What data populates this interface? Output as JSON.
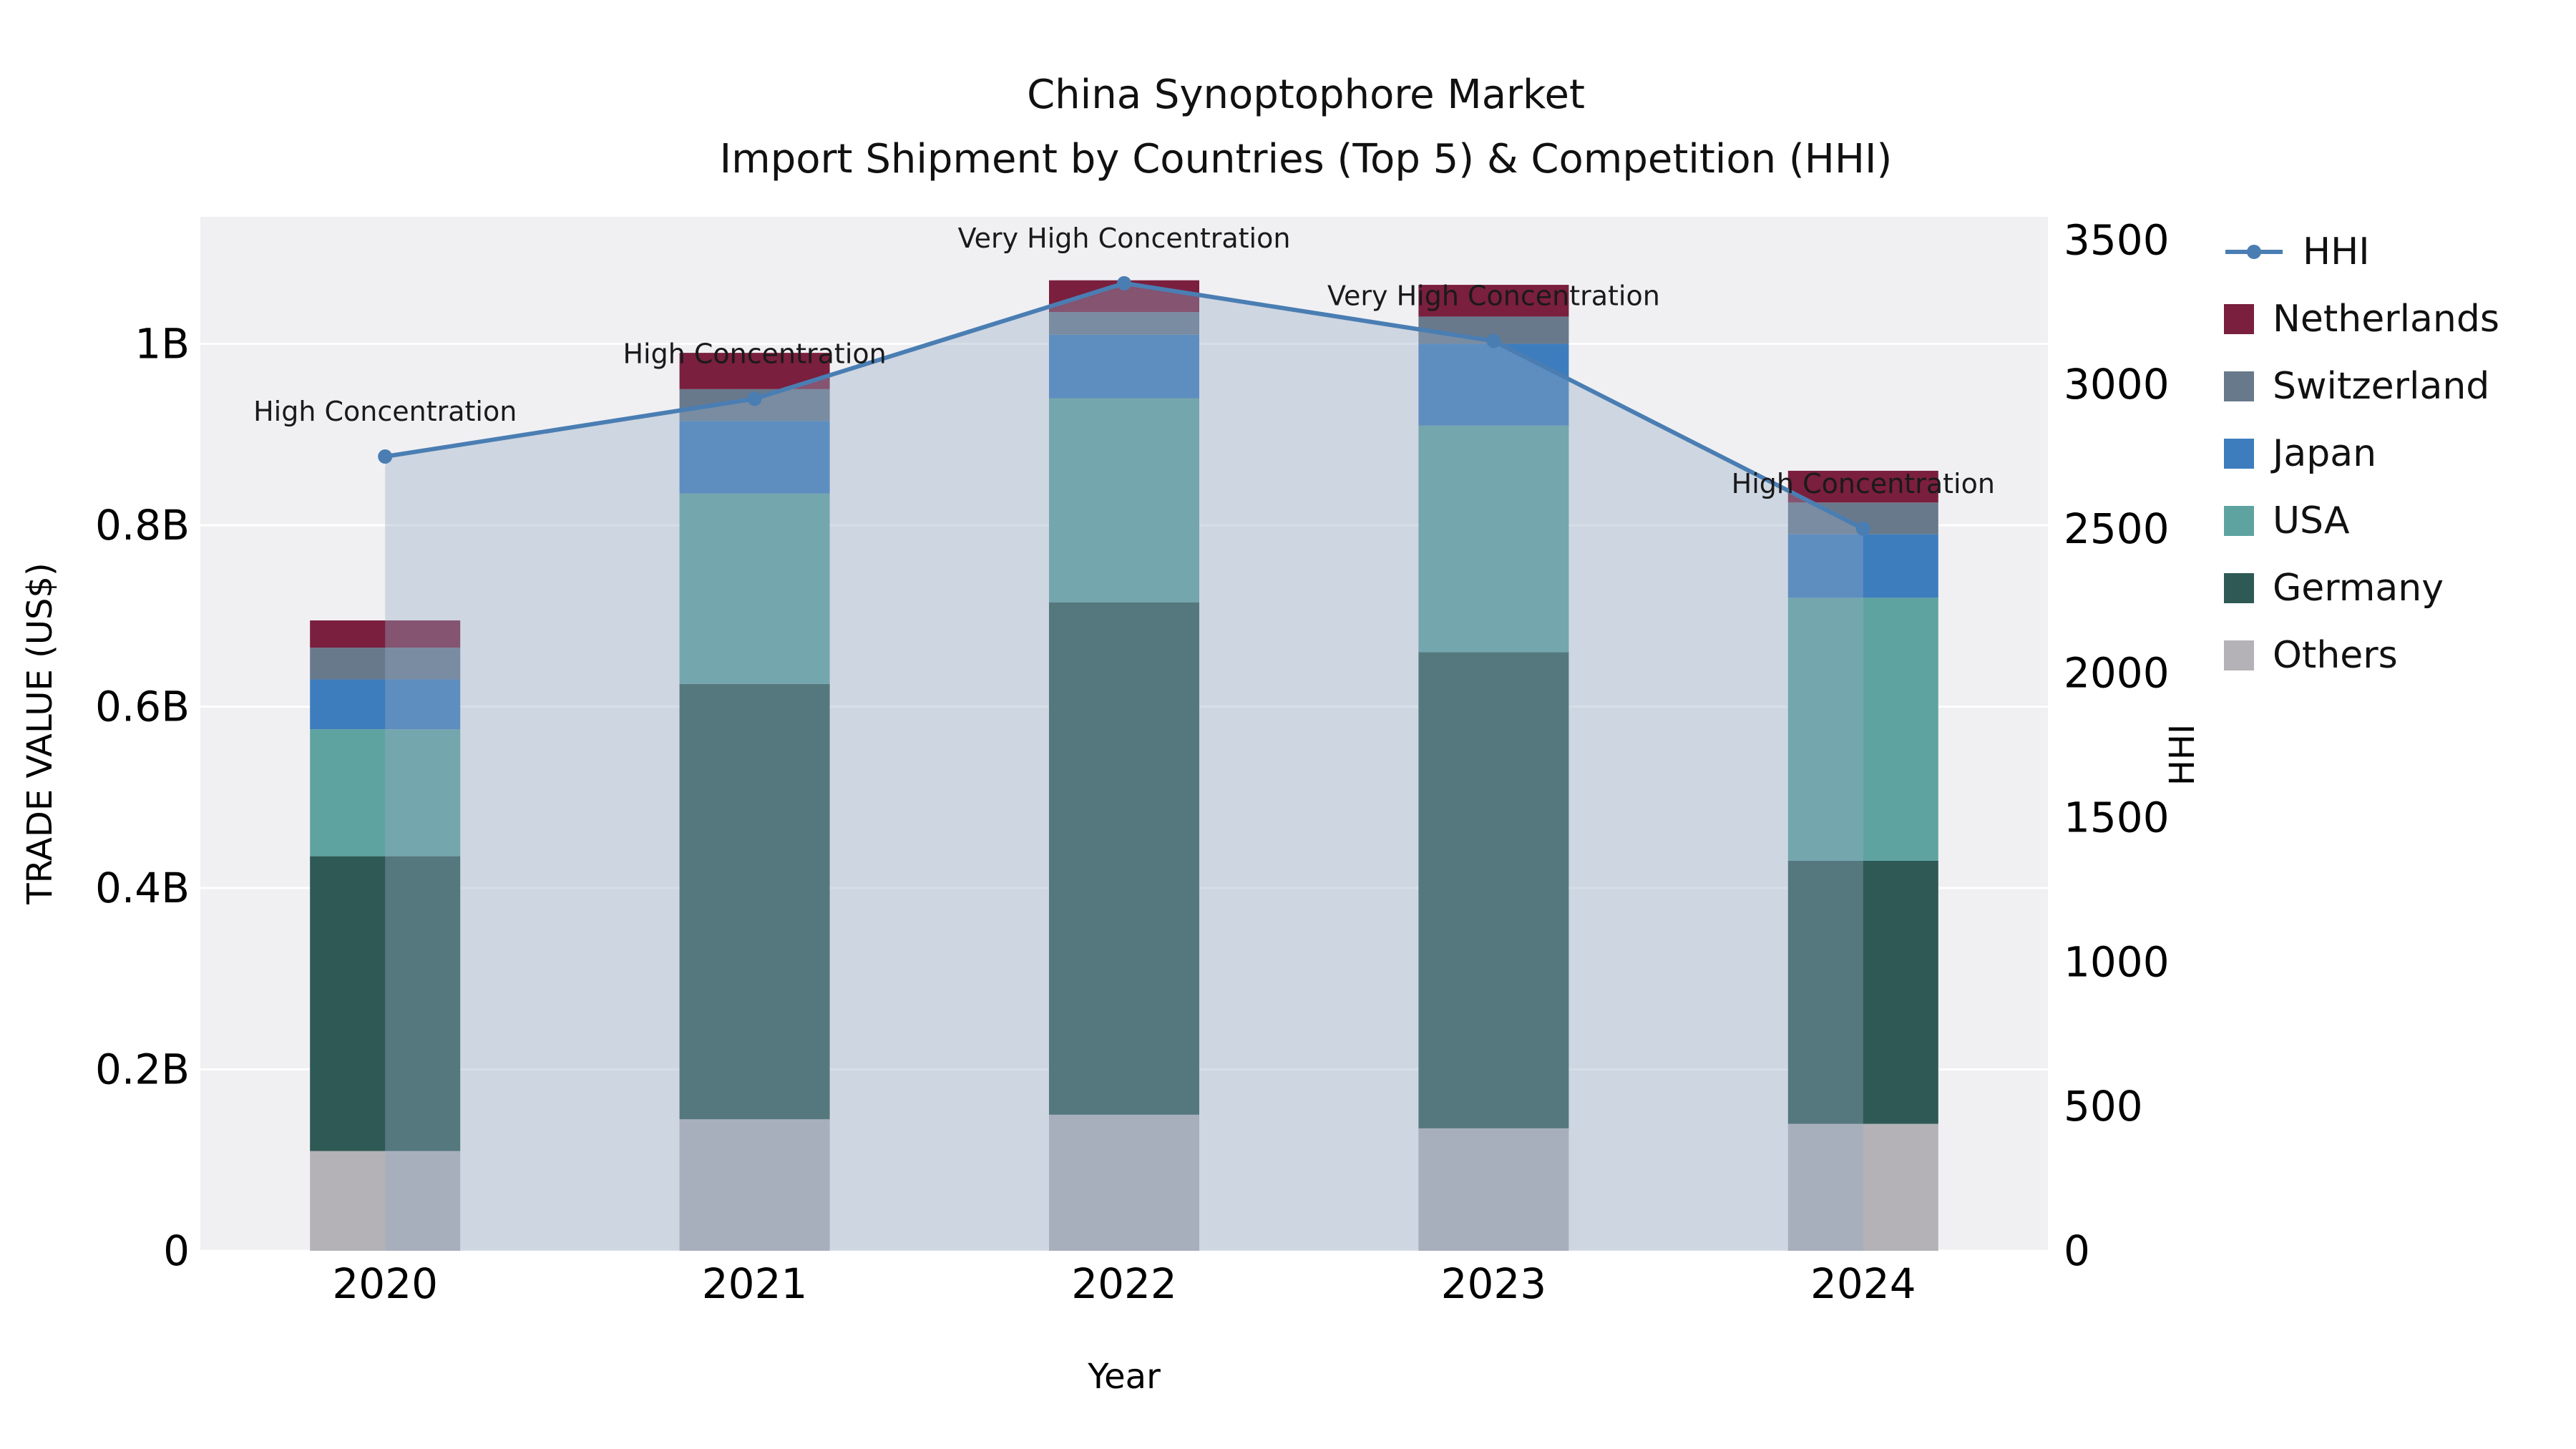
{
  "title": {
    "line1": "China Synoptophore Market",
    "line2": "Import Shipment by Countries (Top 5) & Competition (HHI)"
  },
  "chart_data": {
    "type": "bar",
    "subtype": "stacked-bars-with-line",
    "categories": [
      "2020",
      "2021",
      "2022",
      "2023",
      "2024"
    ],
    "values_unit": "billion US$",
    "series": [
      {
        "name": "Others",
        "color": "#b4b2b6",
        "values": [
          0.11,
          0.145,
          0.15,
          0.135,
          0.14
        ]
      },
      {
        "name": "Germany",
        "color": "#2e5955",
        "values": [
          0.325,
          0.48,
          0.565,
          0.525,
          0.29
        ]
      },
      {
        "name": "USA",
        "color": "#5fa3a1",
        "values": [
          0.14,
          0.21,
          0.225,
          0.25,
          0.29
        ]
      },
      {
        "name": "Japan",
        "color": "#3d7dbd",
        "values": [
          0.055,
          0.08,
          0.07,
          0.09,
          0.07
        ]
      },
      {
        "name": "Switzerland",
        "color": "#68798c",
        "values": [
          0.035,
          0.035,
          0.025,
          0.03,
          0.035
        ]
      },
      {
        "name": "Netherlands",
        "color": "#7a1f3e",
        "values": [
          0.03,
          0.04,
          0.035,
          0.035,
          0.035
        ]
      }
    ],
    "line": {
      "name": "HHI",
      "color": "#4a7eb3",
      "fill_color": "rgba(151,171,196,0.38)",
      "values": [
        2750,
        2950,
        3350,
        3150,
        2500
      ],
      "annotations": [
        "High Concentration",
        "High Concentration",
        "Very High Concentration",
        "Very High Concentration",
        "High Concentration"
      ]
    },
    "xlabel": "Year",
    "ylabel": "TRADE VALUE (US$)",
    "y2label": "HHI",
    "yticks": [
      "0",
      "0.2B",
      "0.4B",
      "0.6B",
      "0.8B",
      "1B"
    ],
    "ytick_values": [
      0,
      0.2,
      0.4,
      0.6,
      0.8,
      1.0
    ],
    "y2ticks": [
      "0",
      "500",
      "1000",
      "1500",
      "2000",
      "2500",
      "3000",
      "3500"
    ],
    "y2tick_values": [
      0,
      500,
      1000,
      1500,
      2000,
      2500,
      3000,
      3500
    ],
    "ylim": [
      0,
      1.14
    ],
    "y2lim": [
      0,
      3580
    ],
    "grid": true,
    "plot_bg": "#f0f0f3",
    "legend_position": "right"
  },
  "legend": {
    "items": [
      {
        "label": "HHI",
        "swatch": "line",
        "color": "#4a7eb3"
      },
      {
        "label": "Netherlands",
        "swatch": "square",
        "color": "#7a1f3e"
      },
      {
        "label": "Switzerland",
        "swatch": "square",
        "color": "#68798c"
      },
      {
        "label": "Japan",
        "swatch": "square",
        "color": "#3d7dbd"
      },
      {
        "label": "USA",
        "swatch": "square",
        "color": "#5fa3a1"
      },
      {
        "label": "Germany",
        "swatch": "square",
        "color": "#2e5955"
      },
      {
        "label": "Others",
        "swatch": "square",
        "color": "#b4b2b6"
      }
    ]
  }
}
